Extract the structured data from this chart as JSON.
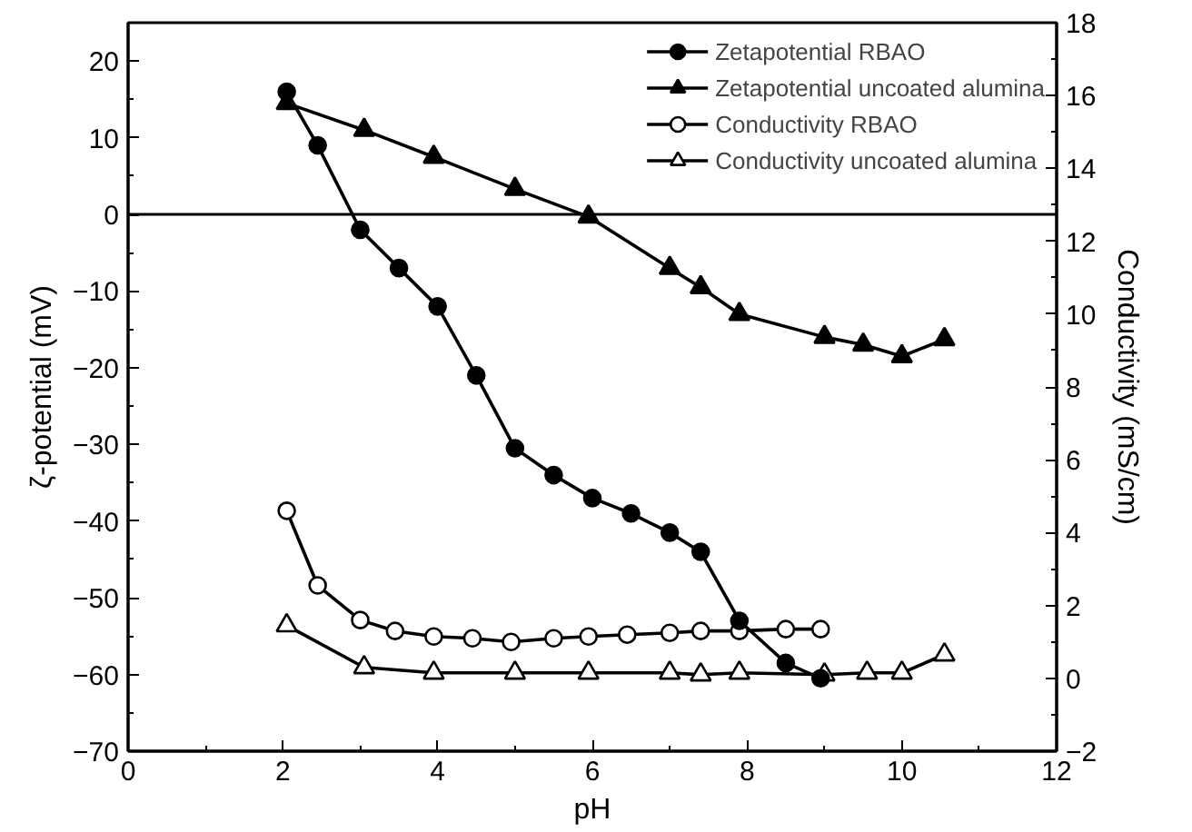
{
  "chart_data": {
    "type": "line",
    "xlabel": "pH",
    "ylabel": "ζ-potential (mV)",
    "y2label": "Conductivity (mS/cm)",
    "xlim": [
      0,
      12
    ],
    "xticks": [
      0,
      2,
      4,
      6,
      8,
      10,
      12
    ],
    "ylim": [
      -70,
      25
    ],
    "yticks": [
      -70,
      -60,
      -50,
      -40,
      -30,
      -20,
      -10,
      0,
      10,
      20
    ],
    "y2lim": [
      -2,
      18
    ],
    "y2ticks": [
      -2,
      0,
      2,
      4,
      6,
      8,
      10,
      12,
      14,
      16,
      18
    ],
    "grid": false,
    "legend": "top right",
    "line_style": "solid",
    "ref_lines": [
      {
        "axis": "y",
        "value": 0,
        "color": "#000000"
      }
    ],
    "series": [
      {
        "name": "Zetapotential RBAO",
        "color": "#000000",
        "marker": "circle",
        "x": [
          2.05,
          2.45,
          3.0,
          3.5,
          4.0,
          4.5,
          5.0,
          5.5,
          6.0,
          6.5,
          7.0,
          7.4,
          7.9,
          8.5,
          8.95
        ],
        "values": [
          16,
          9,
          -2,
          -7,
          -12,
          -21,
          -30.5,
          -34,
          -37,
          -39,
          -41.5,
          -44,
          -53,
          -58.5,
          -60.5
        ]
      },
      {
        "name": "Zetapotential uncoated alumina",
        "color": "#000000",
        "marker": "triangle",
        "x": [
          2.05,
          3.05,
          3.95,
          5.0,
          5.95,
          7.0,
          7.4,
          7.9,
          9.0,
          9.5,
          10.0,
          10.55
        ],
        "values": [
          14.5,
          11,
          7.5,
          3.3,
          -0.3,
          -7,
          -9.5,
          -13,
          -16,
          -17,
          -18.5,
          -16.3
        ]
      },
      {
        "name": "Conductivity RBAO",
        "color": "#000000",
        "marker": "circle",
        "axis": "y2",
        "x": [
          2.05,
          2.45,
          3.0,
          3.45,
          3.95,
          4.45,
          4.95,
          5.5,
          5.95,
          6.45,
          7.0,
          7.4,
          7.9,
          8.5,
          8.95
        ],
        "values": [
          4.6,
          2.55,
          1.6,
          1.3,
          1.15,
          1.1,
          1.0,
          1.1,
          1.15,
          1.2,
          1.25,
          1.3,
          1.3,
          1.35,
          1.35
        ]
      },
      {
        "name": "Conductivity uncoated alumina",
        "color": "#000000",
        "marker": "triangle",
        "axis": "y2",
        "x": [
          2.05,
          3.05,
          3.95,
          5.0,
          5.95,
          7.0,
          7.4,
          7.9,
          9.0,
          9.55,
          10.0,
          10.55
        ],
        "values": [
          1.45,
          0.3,
          0.15,
          0.15,
          0.15,
          0.15,
          0.1,
          0.15,
          0.1,
          0.15,
          0.15,
          0.65
        ]
      }
    ]
  }
}
